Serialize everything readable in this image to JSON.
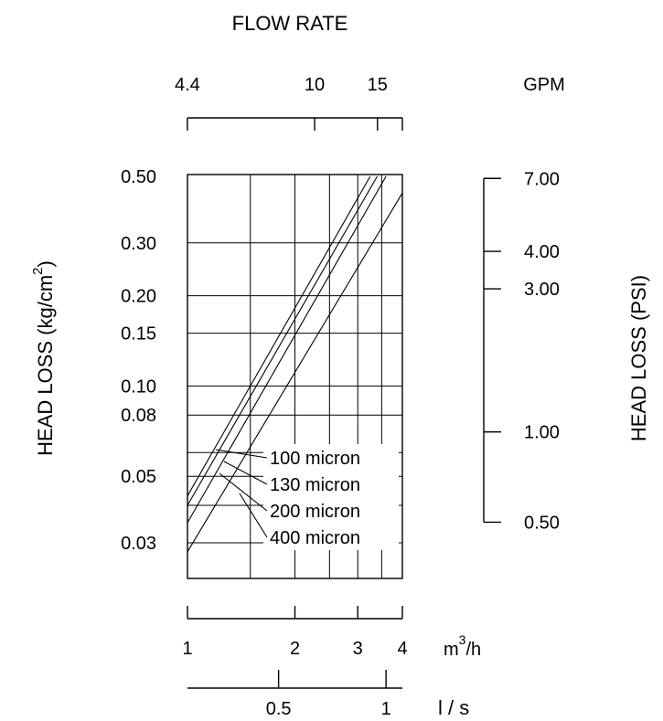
{
  "chart_data": {
    "type": "line",
    "title": "FLOW RATE",
    "ylabel_left_main": "HEAD LOSS (kg/cm",
    "ylabel_left_sup": "2",
    "ylabel_left_close": ")",
    "ylabel_right": "HEAD LOSS (PSI)",
    "grid": true,
    "x_scale": "log",
    "y_scale": "log",
    "xlim": [
      1,
      4
    ],
    "ylim": [
      0.025,
      0.5
    ],
    "legend_placement": "inside-lower-right",
    "gpm_axis": {
      "label": "GPM",
      "ticks": [
        "4.4",
        "10",
        "15"
      ],
      "values": [
        4.4,
        10,
        15
      ]
    },
    "m3h_axis": {
      "label_main": "m",
      "label_sup": "3",
      "label_tail": "/h",
      "ticks": [
        "1",
        "2",
        "3",
        "4"
      ],
      "values": [
        1,
        2,
        3,
        4
      ]
    },
    "ls_axis": {
      "label": "l / s",
      "ticks": [
        "0.5",
        "1"
      ],
      "values": [
        0.5,
        1
      ]
    },
    "left_ticks": [
      "0.50",
      "0.30",
      "0.20",
      "0.15",
      "0.10",
      "0.08",
      "0.05",
      "0.03"
    ],
    "left_values": [
      0.5,
      0.3,
      0.2,
      0.15,
      0.1,
      0.08,
      0.05,
      0.03
    ],
    "right_ticks": [
      "7.00",
      "4.00",
      "3.00",
      "1.00",
      "0.50"
    ],
    "right_values": [
      7.0,
      4.0,
      3.0,
      1.0,
      0.5
    ],
    "series": [
      {
        "name": "100 micron",
        "x": [
          1.0,
          3.25
        ],
        "y": [
          0.043,
          0.5
        ]
      },
      {
        "name": "130 micron",
        "x": [
          1.0,
          3.4
        ],
        "y": [
          0.04,
          0.5
        ]
      },
      {
        "name": "200 micron",
        "x": [
          1.0,
          3.6
        ],
        "y": [
          0.035,
          0.5
        ]
      },
      {
        "name": "400 micron",
        "x": [
          1.0,
          4.0
        ],
        "y": [
          0.028,
          0.44
        ]
      }
    ]
  }
}
